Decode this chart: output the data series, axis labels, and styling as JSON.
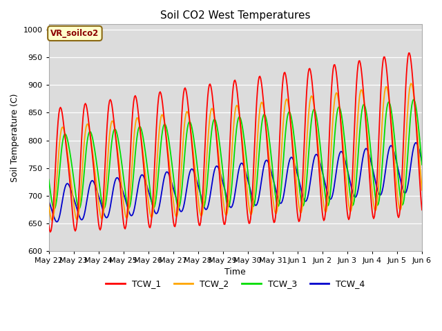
{
  "title": "Soil CO2 West Temperatures",
  "xlabel": "Time",
  "ylabel": "Soil Temperature (C)",
  "ylim": [
    600,
    1010
  ],
  "yticks": [
    600,
    650,
    700,
    750,
    800,
    850,
    900,
    950,
    1000
  ],
  "bg_color": "#dcdcdc",
  "line_colors": {
    "TCW_1": "#ff0000",
    "TCW_2": "#ffa500",
    "TCW_3": "#00dd00",
    "TCW_4": "#0000cc"
  },
  "legend_label": "VR_soilco2",
  "x_labels": [
    "May 22",
    "May 23",
    "May 24",
    "May 25",
    "May 26",
    "May 27",
    "May 28",
    "May 29",
    "May 30",
    "May 31",
    "Jun 1",
    "Jun 2",
    "Jun 3",
    "Jun 4",
    "Jun 5",
    "Jun 6"
  ],
  "n_points": 480
}
